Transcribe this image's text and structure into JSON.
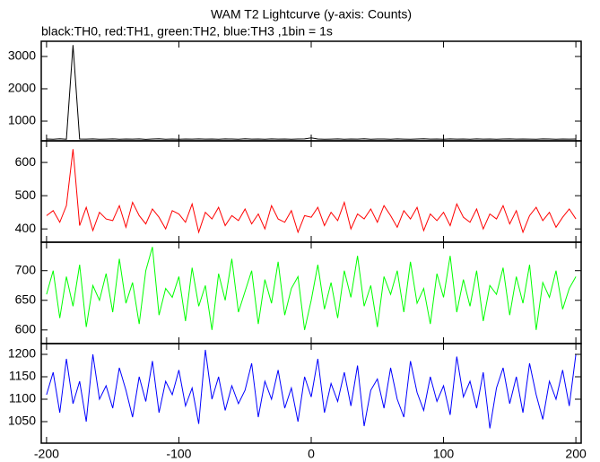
{
  "title": "WAM T2 Lightcurve (y-axis: Counts)",
  "subtitle": "black:TH0, red:TH1, green:TH2, blue:TH3 ,1bin = 1s",
  "chart_data": [
    {
      "type": "line",
      "color": "#000000",
      "x": [
        -200,
        -195,
        -190,
        -185,
        -180,
        -175,
        -170,
        -165,
        -160,
        -155,
        -150,
        -145,
        -140,
        -135,
        -130,
        -125,
        -120,
        -115,
        -110,
        -105,
        -100,
        -95,
        -90,
        -85,
        -80,
        -75,
        -70,
        -65,
        -60,
        -55,
        -50,
        -45,
        -40,
        -35,
        -30,
        -25,
        -20,
        -15,
        -10,
        -5,
        0,
        5,
        10,
        15,
        20,
        25,
        30,
        35,
        40,
        45,
        50,
        55,
        60,
        65,
        70,
        75,
        80,
        85,
        90,
        95,
        100,
        105,
        110,
        115,
        120,
        125,
        130,
        135,
        140,
        145,
        150,
        155,
        160,
        165,
        170,
        175,
        180,
        185,
        190,
        195,
        200
      ],
      "values": [
        445,
        440,
        452,
        438,
        3350,
        446,
        441,
        449,
        437,
        443,
        450,
        439,
        446,
        442,
        448,
        436,
        444,
        451,
        440,
        447,
        438,
        445,
        443,
        450,
        441,
        446,
        439,
        448,
        444,
        437,
        452,
        443,
        446,
        440,
        449,
        441,
        447,
        438,
        445,
        450,
        480,
        446,
        440,
        443,
        448,
        439,
        447,
        442,
        451,
        438,
        444,
        446,
        440,
        449,
        443,
        437,
        447,
        452,
        441,
        445,
        439,
        448,
        443,
        446,
        440,
        450,
        442,
        447,
        438,
        445,
        449,
        441,
        446,
        443,
        439,
        448,
        444,
        440,
        447,
        442,
        445
      ],
      "xlim": [
        -204,
        204
      ],
      "ylim": [
        390,
        3470
      ],
      "yticks": [
        1000,
        2000,
        3000
      ],
      "xticks": [
        -200,
        -100,
        0,
        100,
        200
      ]
    },
    {
      "type": "line",
      "color": "#ff0000",
      "x": [
        -200,
        -195,
        -190,
        -185,
        -180,
        -175,
        -170,
        -165,
        -160,
        -155,
        -150,
        -145,
        -140,
        -135,
        -130,
        -125,
        -120,
        -115,
        -110,
        -105,
        -100,
        -95,
        -90,
        -85,
        -80,
        -75,
        -70,
        -65,
        -60,
        -55,
        -50,
        -45,
        -40,
        -35,
        -30,
        -25,
        -20,
        -15,
        -10,
        -5,
        0,
        5,
        10,
        15,
        20,
        25,
        30,
        35,
        40,
        45,
        50,
        55,
        60,
        65,
        70,
        75,
        80,
        85,
        90,
        95,
        100,
        105,
        110,
        115,
        120,
        125,
        130,
        135,
        140,
        145,
        150,
        155,
        160,
        165,
        170,
        175,
        180,
        185,
        190,
        195,
        200
      ],
      "values": [
        440,
        455,
        420,
        470,
        640,
        410,
        465,
        395,
        450,
        430,
        425,
        470,
        405,
        480,
        440,
        415,
        460,
        435,
        400,
        455,
        445,
        420,
        475,
        390,
        450,
        430,
        465,
        410,
        440,
        425,
        460,
        415,
        445,
        400,
        470,
        430,
        420,
        455,
        390,
        440,
        435,
        465,
        410,
        450,
        425,
        480,
        400,
        445,
        430,
        460,
        420,
        470,
        440,
        405,
        455,
        430,
        465,
        395,
        445,
        425,
        450,
        410,
        475,
        435,
        420,
        460,
        400,
        445,
        430,
        470,
        415,
        455,
        390,
        440,
        465,
        425,
        450,
        405,
        435,
        460,
        430
      ],
      "xlim": [
        -204,
        204
      ],
      "ylim": [
        360,
        665
      ],
      "yticks": [
        400,
        500,
        600
      ],
      "xticks": [
        -200,
        -100,
        0,
        100,
        200
      ]
    },
    {
      "type": "line",
      "color": "#00ff00",
      "x": [
        -200,
        -195,
        -190,
        -185,
        -180,
        -175,
        -170,
        -165,
        -160,
        -155,
        -150,
        -145,
        -140,
        -135,
        -130,
        -125,
        -120,
        -115,
        -110,
        -105,
        -100,
        -95,
        -90,
        -85,
        -80,
        -75,
        -70,
        -65,
        -60,
        -55,
        -50,
        -45,
        -40,
        -35,
        -30,
        -25,
        -20,
        -15,
        -10,
        -5,
        0,
        5,
        10,
        15,
        20,
        25,
        30,
        35,
        40,
        45,
        50,
        55,
        60,
        65,
        70,
        75,
        80,
        85,
        90,
        95,
        100,
        105,
        110,
        115,
        120,
        125,
        130,
        135,
        140,
        145,
        150,
        155,
        160,
        165,
        170,
        175,
        180,
        185,
        190,
        195,
        200
      ],
      "values": [
        660,
        700,
        620,
        690,
        640,
        710,
        605,
        675,
        650,
        695,
        630,
        720,
        645,
        680,
        610,
        700,
        740,
        625,
        670,
        655,
        690,
        615,
        705,
        640,
        675,
        600,
        695,
        650,
        720,
        630,
        665,
        700,
        610,
        685,
        645,
        715,
        625,
        670,
        690,
        600,
        650,
        710,
        635,
        680,
        620,
        700,
        655,
        725,
        640,
        675,
        605,
        690,
        660,
        700,
        630,
        715,
        645,
        670,
        610,
        695,
        655,
        725,
        630,
        685,
        640,
        700,
        615,
        675,
        660,
        705,
        625,
        690,
        645,
        710,
        600,
        680,
        655,
        700,
        635,
        670,
        690
      ],
      "xlim": [
        -204,
        204
      ],
      "ylim": [
        577,
        748
      ],
      "yticks": [
        600,
        650,
        700
      ],
      "xticks": [
        -200,
        -100,
        0,
        100,
        200
      ]
    },
    {
      "type": "line",
      "color": "#0000ff",
      "x": [
        -200,
        -195,
        -190,
        -185,
        -180,
        -175,
        -170,
        -165,
        -160,
        -155,
        -150,
        -145,
        -140,
        -135,
        -130,
        -125,
        -120,
        -115,
        -110,
        -105,
        -100,
        -95,
        -90,
        -85,
        -80,
        -75,
        -70,
        -65,
        -60,
        -55,
        -50,
        -45,
        -40,
        -35,
        -30,
        -25,
        -20,
        -15,
        -10,
        -5,
        0,
        5,
        10,
        15,
        20,
        25,
        30,
        35,
        40,
        45,
        50,
        55,
        60,
        65,
        70,
        75,
        80,
        85,
        90,
        95,
        100,
        105,
        110,
        115,
        120,
        125,
        130,
        135,
        140,
        145,
        150,
        155,
        160,
        165,
        170,
        175,
        180,
        185,
        190,
        195,
        200
      ],
      "values": [
        1110,
        1160,
        1070,
        1190,
        1090,
        1140,
        1050,
        1200,
        1100,
        1130,
        1080,
        1170,
        1120,
        1060,
        1150,
        1095,
        1185,
        1070,
        1140,
        1110,
        1165,
        1085,
        1125,
        1045,
        1210,
        1100,
        1150,
        1075,
        1130,
        1090,
        1120,
        1180,
        1060,
        1140,
        1100,
        1165,
        1080,
        1125,
        1050,
        1150,
        1105,
        1190,
        1070,
        1135,
        1095,
        1160,
        1085,
        1175,
        1040,
        1120,
        1145,
        1080,
        1170,
        1100,
        1060,
        1185,
        1115,
        1075,
        1150,
        1095,
        1130,
        1065,
        1195,
        1105,
        1140,
        1080,
        1160,
        1035,
        1125,
        1170,
        1090,
        1150,
        1070,
        1180,
        1110,
        1055,
        1140,
        1100,
        1165,
        1085,
        1200
      ],
      "xlim": [
        -204,
        204
      ],
      "ylim": [
        1002,
        1224
      ],
      "yticks": [
        1050,
        1100,
        1150,
        1200
      ],
      "xticks": [
        -200,
        -100,
        0,
        100,
        200
      ]
    }
  ]
}
